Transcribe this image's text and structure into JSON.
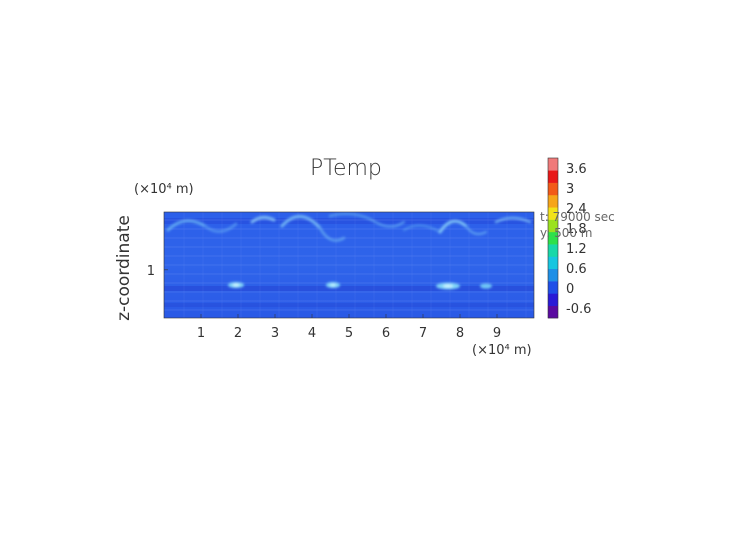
{
  "chart_data": {
    "type": "heatmap",
    "title": "PTemp",
    "ylabel": "z-coordinate",
    "x_unit": "(×10⁴ m)",
    "y_unit": "(×10⁴ m)",
    "x_ticks": [
      "1",
      "2",
      "3",
      "4",
      "5",
      "6",
      "7",
      "8",
      "9"
    ],
    "x_tick_values": [
      1,
      2,
      3,
      4,
      5,
      6,
      7,
      8,
      9
    ],
    "xlim": [
      0,
      10
    ],
    "y_ticks": [
      "1"
    ],
    "y_tick_values": [
      1
    ],
    "ylim": [
      0.75,
      1.3
    ],
    "colorbar": {
      "tick_labels": [
        "3.6",
        "3",
        "2.4",
        "1.8",
        "1.2",
        "0.6",
        "0",
        "-0.6"
      ],
      "tick_values": [
        3.6,
        3.0,
        2.4,
        1.8,
        1.2,
        0.6,
        0.0,
        -0.6
      ],
      "range": [
        -0.9,
        3.9
      ],
      "colors": [
        "#5a0aa0",
        "#2a1ad6",
        "#1f4fe8",
        "#1e8fe6",
        "#16c6e0",
        "#18d8a8",
        "#2ee04a",
        "#9be21e",
        "#f2e21a",
        "#f6a51a",
        "#f25a18",
        "#e81818",
        "#f07a7a"
      ]
    },
    "annotations": [
      "t: 79000 sec",
      "y: 500 m"
    ],
    "field_description": "mostly near-zero (blue) potential temperature perturbation with light-blue/cyan thermal arcs near the top and small warm bubbles in the lower part"
  }
}
